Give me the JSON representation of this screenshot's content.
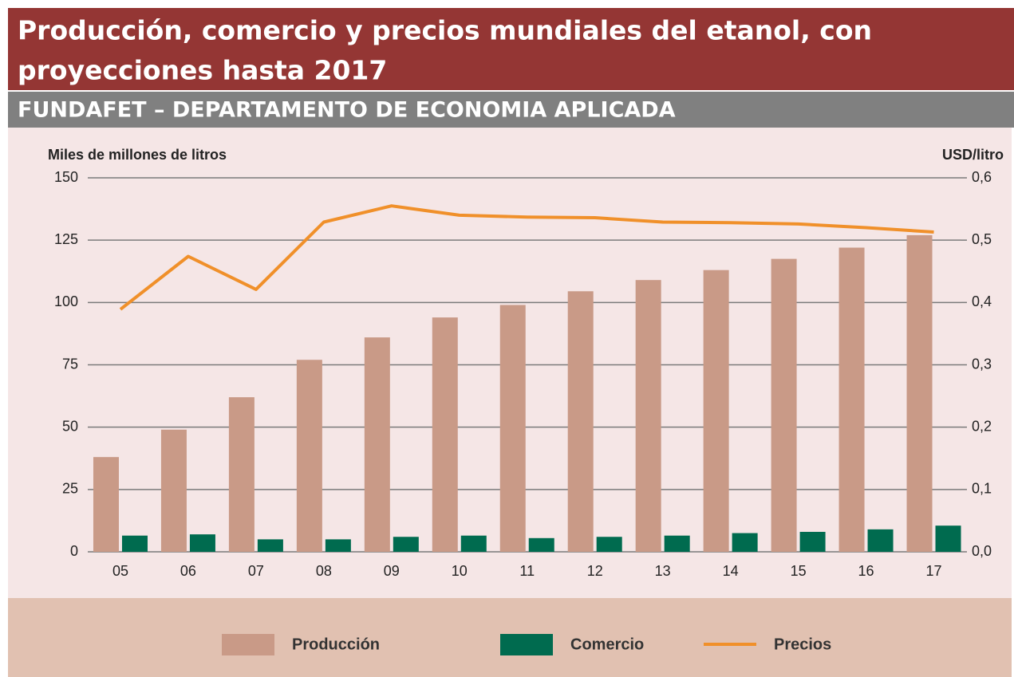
{
  "chart_data": {
    "type": "bar",
    "title": [
      "Producción, comercio y precios mundiales del etanol, con",
      "proyecciones hasta 2017"
    ],
    "subtitle": "FUNDAFET – DEPARTAMENTO DE ECONOMIA APLICADA",
    "ylabel": "Miles de millones de litros",
    "y2label": "USD/litro",
    "categories": [
      "05",
      "06",
      "07",
      "08",
      "09",
      "10",
      "11",
      "12",
      "13",
      "14",
      "15",
      "16",
      "17"
    ],
    "series": [
      {
        "name": "Producción",
        "type": "bar",
        "color": "#c99a87",
        "values": [
          38,
          49,
          62,
          77,
          86,
          94,
          99,
          104.5,
          109,
          113,
          117.5,
          122,
          127
        ]
      },
      {
        "name": "Comercio",
        "type": "bar",
        "color": "#006b4f",
        "values": [
          6.5,
          7,
          5,
          5,
          6,
          6.5,
          5.5,
          6,
          6.5,
          7.5,
          8,
          9,
          10.5
        ]
      },
      {
        "name": "Precios",
        "type": "line",
        "axis": "y2",
        "color": "#f0902a",
        "values": [
          0.389,
          0.474,
          0.421,
          0.529,
          0.555,
          0.54,
          0.537,
          0.536,
          0.529,
          0.528,
          0.526,
          0.52,
          0.513
        ]
      }
    ],
    "ylim": [
      0,
      150
    ],
    "yticks": [
      0,
      25,
      50,
      75,
      100,
      125,
      150
    ],
    "y2lim": [
      0,
      0.6
    ],
    "y2ticks": [
      {
        "value": 0,
        "label": "0,0"
      },
      {
        "value": 0.1,
        "label": "0,1"
      },
      {
        "value": 0.2,
        "label": "0,2"
      },
      {
        "value": 0.3,
        "label": "0,3"
      },
      {
        "value": 0.4,
        "label": "0,4"
      },
      {
        "value": 0.5,
        "label": "0,5"
      },
      {
        "value": 0.6,
        "label": "0,6"
      }
    ],
    "grid": true,
    "legend": "bottom"
  }
}
